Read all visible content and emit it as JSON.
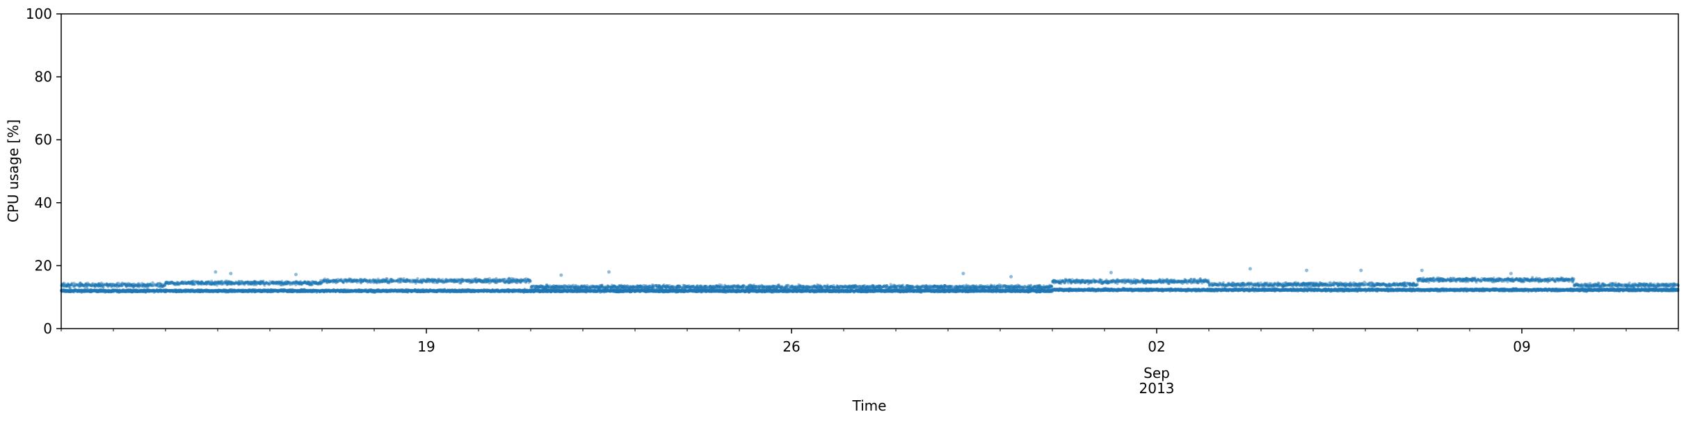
{
  "chart_data": {
    "type": "scatter",
    "title": "",
    "xlabel": "Time",
    "ylabel": "CPU usage [%]",
    "ylim": [
      0,
      100
    ],
    "yticks": [
      0,
      20,
      40,
      60,
      80,
      100
    ],
    "xlim": [
      "2013-08-12",
      "2013-09-12"
    ],
    "xticks": [
      {
        "date": "2013-08-19",
        "label": "19"
      },
      {
        "date": "2013-08-26",
        "label": "26"
      },
      {
        "date": "2013-09-02",
        "label": "02",
        "sublabel": "Sep",
        "sublabel2": "2013"
      },
      {
        "date": "2013-09-09",
        "label": "09"
      }
    ],
    "minor_ticks": "daily",
    "grid": false,
    "legend": "none",
    "marker_color": "#1f77b4",
    "series": [
      {
        "points_per_day": 288,
        "lower_band": [
          {
            "start": "2013-08-12",
            "end": "2013-08-21",
            "value": 12.0
          },
          {
            "start": "2013-08-21",
            "end": "2013-08-31",
            "value": 12.0
          },
          {
            "start": "2013-08-31",
            "end": "2013-09-12",
            "value": 12.3
          }
        ],
        "upper_band": [
          {
            "start": "2013-08-12",
            "end": "2013-08-14",
            "value": 13.8
          },
          {
            "start": "2013-08-14",
            "end": "2013-08-17",
            "value": 14.5
          },
          {
            "start": "2013-08-17",
            "end": "2013-08-21",
            "value": 15.2
          },
          {
            "start": "2013-08-21",
            "end": "2013-08-31",
            "value": 13.2
          },
          {
            "start": "2013-08-31",
            "end": "2013-09-03",
            "value": 15.0
          },
          {
            "start": "2013-09-03",
            "end": "2013-09-07",
            "value": 14.0
          },
          {
            "start": "2013-09-07",
            "end": "2013-09-10",
            "value": 15.5
          },
          {
            "start": "2013-09-10",
            "end": "2013-09-12",
            "value": 13.8
          }
        ],
        "outliers": [
          {
            "x": "2013-08-14 23:00",
            "y": 18.0
          },
          {
            "x": "2013-08-15 06:00",
            "y": 17.5
          },
          {
            "x": "2013-08-16 12:00",
            "y": 17.2
          },
          {
            "x": "2013-08-21 14:00",
            "y": 17.0
          },
          {
            "x": "2013-08-22 12:00",
            "y": 18.0
          },
          {
            "x": "2013-08-29 07:00",
            "y": 17.5
          },
          {
            "x": "2013-08-30 05:00",
            "y": 16.5
          },
          {
            "x": "2013-09-01 03:00",
            "y": 17.8
          },
          {
            "x": "2013-09-03 19:00",
            "y": 19.0
          },
          {
            "x": "2013-09-04 21:00",
            "y": 18.5
          },
          {
            "x": "2013-09-05 22:00",
            "y": 18.5
          },
          {
            "x": "2013-09-07 02:00",
            "y": 18.5
          },
          {
            "x": "2013-09-08 19:00",
            "y": 17.5
          }
        ]
      }
    ]
  }
}
